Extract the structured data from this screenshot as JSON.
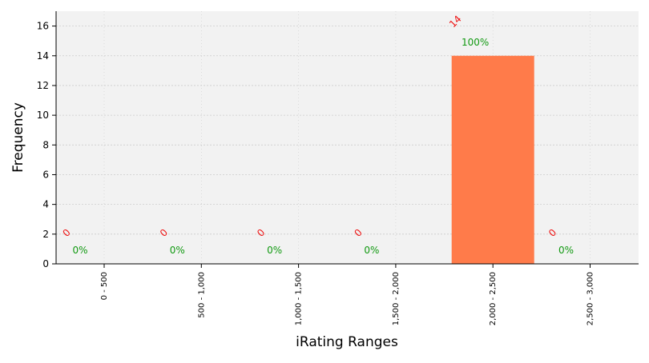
{
  "chart_data": {
    "type": "bar",
    "xlabel": "iRating Ranges",
    "ylabel": "Frequency",
    "categories": [
      "0 - 500",
      "500 - 1,000",
      "1,000 - 1,500",
      "1,500 - 2,000",
      "2,000 - 2,500",
      "2,500 - 3,000"
    ],
    "values": [
      0,
      0,
      0,
      0,
      14,
      0
    ],
    "count_labels": [
      "0",
      "0",
      "0",
      "0",
      "14",
      "0"
    ],
    "percent_labels": [
      "0%",
      "0%",
      "0%",
      "0%",
      "100%",
      "0%"
    ],
    "ylim": [
      0,
      17
    ],
    "yticks": [
      0,
      2,
      4,
      6,
      8,
      10,
      12,
      14,
      16
    ],
    "grid": true,
    "colors": {
      "bar": "#ff7b4a",
      "plot_background": "#f2f2f2",
      "grid": "#cccccc",
      "count_label": "#ee1111",
      "percent_label": "#119911",
      "axis": "#000000"
    }
  }
}
